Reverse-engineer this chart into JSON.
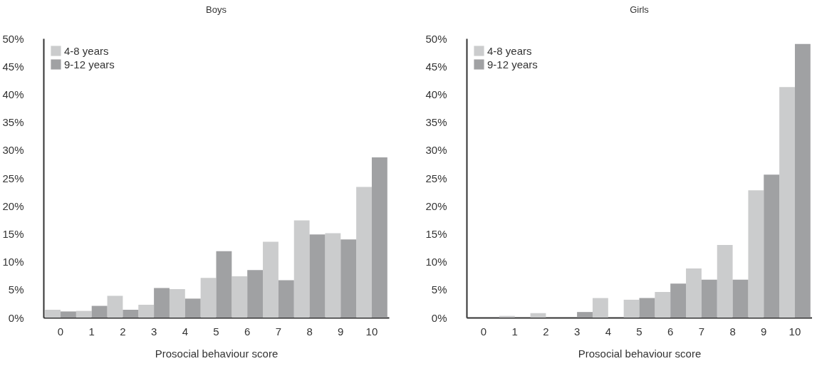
{
  "chart_data": [
    {
      "type": "bar",
      "title": "Boys",
      "xlabel": "Prosocial behaviour score",
      "categories": [
        "0",
        "1",
        "2",
        "3",
        "4",
        "5",
        "6",
        "7",
        "8",
        "9",
        "10"
      ],
      "series": [
        {
          "name": "4-8 years",
          "color": "#cbcccd",
          "values": [
            1.4,
            1.2,
            3.9,
            2.3,
            5.1,
            7.1,
            7.4,
            13.6,
            17.4,
            15.1,
            23.4
          ]
        },
        {
          "name": "9-12 years",
          "color": "#a0a1a3",
          "values": [
            1.1,
            2.1,
            1.4,
            5.3,
            3.4,
            11.9,
            8.5,
            6.7,
            14.9,
            14.0,
            28.7
          ]
        }
      ],
      "ylim": [
        0,
        50
      ],
      "yticks": [
        {
          "value": 0,
          "label": "0%"
        },
        {
          "value": 5,
          "label": "5%"
        },
        {
          "value": 10,
          "label": "10%"
        },
        {
          "value": 15,
          "label": "15%"
        },
        {
          "value": 20,
          "label": "20%"
        },
        {
          "value": 25,
          "label": "25%"
        },
        {
          "value": 30,
          "label": "30%"
        },
        {
          "value": 35,
          "label": "35%"
        },
        {
          "value": 40,
          "label": "40%"
        },
        {
          "value": 45,
          "label": "45%"
        },
        {
          "value": 50,
          "label": "50%"
        }
      ],
      "grid": false,
      "legend": "top left"
    },
    {
      "type": "bar",
      "title": "Girls",
      "xlabel": "Prosocial behaviour score",
      "categories": [
        "0",
        "1",
        "2",
        "3",
        "4",
        "5",
        "6",
        "7",
        "8",
        "9",
        "10"
      ],
      "series": [
        {
          "name": "4-8 years",
          "color": "#cbcccd",
          "values": [
            0,
            0.3,
            0.8,
            0,
            3.5,
            3.2,
            4.6,
            8.8,
            13.0,
            22.8,
            41.3
          ]
        },
        {
          "name": "9-12 years",
          "color": "#a0a1a3",
          "values": [
            0,
            0,
            0,
            1.0,
            0,
            3.5,
            6.1,
            6.8,
            6.8,
            25.6,
            49.0
          ]
        }
      ],
      "ylim": [
        0,
        50
      ],
      "yticks": [
        {
          "value": 0,
          "label": "0%"
        },
        {
          "value": 5,
          "label": "5%"
        },
        {
          "value": 10,
          "label": "10%"
        },
        {
          "value": 15,
          "label": "15%"
        },
        {
          "value": 20,
          "label": "20%"
        },
        {
          "value": 25,
          "label": "25%"
        },
        {
          "value": 30,
          "label": "30%"
        },
        {
          "value": 35,
          "label": "35%"
        },
        {
          "value": 40,
          "label": "40%"
        },
        {
          "value": 45,
          "label": "45%"
        },
        {
          "value": 50,
          "label": "50%"
        }
      ],
      "grid": false,
      "legend": "top left"
    }
  ]
}
